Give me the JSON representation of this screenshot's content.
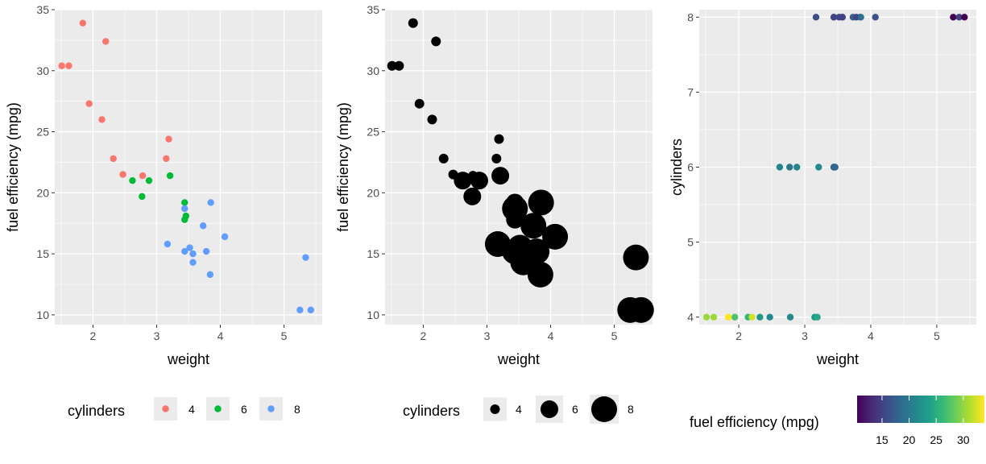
{
  "chart_data": [
    {
      "id": "panel_a",
      "type": "scatter",
      "title": "",
      "xlabel": "weight",
      "ylabel": "fuel efficiency (mpg)",
      "xlim": [
        1.4,
        5.6
      ],
      "ylim": [
        9.2,
        35.0
      ],
      "x_ticks": [
        2,
        3,
        4,
        5
      ],
      "y_ticks": [
        10,
        15,
        20,
        25,
        30,
        35
      ],
      "grid": true,
      "legend": {
        "title": "cylinders",
        "placement": "bottom",
        "entries": [
          {
            "label": "4",
            "color": "#F8766D"
          },
          {
            "label": "6",
            "color": "#00BA38"
          },
          {
            "label": "8",
            "color": "#619CFF"
          }
        ]
      },
      "series": [
        {
          "name": "4",
          "color": "#F8766D",
          "points": [
            [
              1.51,
              30.4
            ],
            [
              1.62,
              30.4
            ],
            [
              1.84,
              33.9
            ],
            [
              2.2,
              32.4
            ],
            [
              1.94,
              27.3
            ],
            [
              2.14,
              26.0
            ],
            [
              2.32,
              22.8
            ],
            [
              2.47,
              21.5
            ],
            [
              2.78,
              21.4
            ],
            [
              3.15,
              22.8
            ],
            [
              3.19,
              24.4
            ]
          ]
        },
        {
          "name": "6",
          "color": "#00BA38",
          "points": [
            [
              2.62,
              21.0
            ],
            [
              2.77,
              19.7
            ],
            [
              2.88,
              21.0
            ],
            [
              3.21,
              21.4
            ],
            [
              3.44,
              19.2
            ],
            [
              3.44,
              17.8
            ],
            [
              3.46,
              18.1
            ]
          ]
        },
        {
          "name": "8",
          "color": "#619CFF",
          "points": [
            [
              3.17,
              15.8
            ],
            [
              3.44,
              18.7
            ],
            [
              3.44,
              15.2
            ],
            [
              3.52,
              15.5
            ],
            [
              3.57,
              14.3
            ],
            [
              3.57,
              15.0
            ],
            [
              3.73,
              17.3
            ],
            [
              3.78,
              15.2
            ],
            [
              3.84,
              13.3
            ],
            [
              3.85,
              19.2
            ],
            [
              4.07,
              16.4
            ],
            [
              5.25,
              10.4
            ],
            [
              5.34,
              14.7
            ],
            [
              5.42,
              10.4
            ]
          ]
        }
      ]
    },
    {
      "id": "panel_b",
      "type": "scatter",
      "title": "",
      "xlabel": "weight",
      "ylabel": "fuel efficiency (mpg)",
      "xlim": [
        1.4,
        5.6
      ],
      "ylim": [
        9.2,
        35.0
      ],
      "x_ticks": [
        2,
        3,
        4,
        5
      ],
      "y_ticks": [
        10,
        15,
        20,
        25,
        30,
        35
      ],
      "grid": true,
      "point_color": "#000000",
      "size_by": "cylinders",
      "legend": {
        "title": "cylinders",
        "placement": "bottom",
        "entries": [
          {
            "label": "4",
            "cyl": 4
          },
          {
            "label": "6",
            "cyl": 6
          },
          {
            "label": "8",
            "cyl": 8
          }
        ]
      },
      "points": [
        {
          "x": 1.51,
          "y": 30.4,
          "cyl": 4
        },
        {
          "x": 1.62,
          "y": 30.4,
          "cyl": 4
        },
        {
          "x": 1.84,
          "y": 33.9,
          "cyl": 4
        },
        {
          "x": 2.2,
          "y": 32.4,
          "cyl": 4
        },
        {
          "x": 1.94,
          "y": 27.3,
          "cyl": 4
        },
        {
          "x": 2.14,
          "y": 26.0,
          "cyl": 4
        },
        {
          "x": 2.32,
          "y": 22.8,
          "cyl": 4
        },
        {
          "x": 2.47,
          "y": 21.5,
          "cyl": 4
        },
        {
          "x": 2.78,
          "y": 21.4,
          "cyl": 4
        },
        {
          "x": 3.15,
          "y": 22.8,
          "cyl": 4
        },
        {
          "x": 3.19,
          "y": 24.4,
          "cyl": 4
        },
        {
          "x": 2.62,
          "y": 21.0,
          "cyl": 6
        },
        {
          "x": 2.77,
          "y": 19.7,
          "cyl": 6
        },
        {
          "x": 2.88,
          "y": 21.0,
          "cyl": 6
        },
        {
          "x": 3.21,
          "y": 21.4,
          "cyl": 6
        },
        {
          "x": 3.44,
          "y": 19.2,
          "cyl": 6
        },
        {
          "x": 3.44,
          "y": 17.8,
          "cyl": 6
        },
        {
          "x": 3.46,
          "y": 18.1,
          "cyl": 6
        },
        {
          "x": 3.17,
          "y": 15.8,
          "cyl": 8
        },
        {
          "x": 3.44,
          "y": 18.7,
          "cyl": 8
        },
        {
          "x": 3.44,
          "y": 15.2,
          "cyl": 8
        },
        {
          "x": 3.52,
          "y": 15.5,
          "cyl": 8
        },
        {
          "x": 3.57,
          "y": 14.3,
          "cyl": 8
        },
        {
          "x": 3.57,
          "y": 15.0,
          "cyl": 8
        },
        {
          "x": 3.73,
          "y": 17.3,
          "cyl": 8
        },
        {
          "x": 3.78,
          "y": 15.2,
          "cyl": 8
        },
        {
          "x": 3.84,
          "y": 13.3,
          "cyl": 8
        },
        {
          "x": 3.85,
          "y": 19.2,
          "cyl": 8
        },
        {
          "x": 4.07,
          "y": 16.4,
          "cyl": 8
        },
        {
          "x": 5.25,
          "y": 10.4,
          "cyl": 8
        },
        {
          "x": 5.34,
          "y": 14.7,
          "cyl": 8
        },
        {
          "x": 5.42,
          "y": 10.4,
          "cyl": 8
        }
      ]
    },
    {
      "id": "panel_c",
      "type": "scatter",
      "title": "",
      "xlabel": "weight",
      "ylabel": "cylinders",
      "xlim": [
        1.4,
        5.6
      ],
      "ylim": [
        3.9,
        8.1
      ],
      "x_ticks": [
        2,
        3,
        4,
        5
      ],
      "y_ticks": [
        4,
        5,
        6,
        7,
        8
      ],
      "grid": true,
      "color_by": "fuel efficiency (mpg)",
      "color_scale": "viridis",
      "color_range": [
        10.4,
        33.9
      ],
      "colorbar": {
        "title": "fuel efficiency (mpg)",
        "placement": "bottom",
        "ticks": [
          15,
          20,
          25,
          30
        ]
      },
      "points": [
        {
          "x": 1.51,
          "y": 4,
          "mpg": 30.4
        },
        {
          "x": 1.62,
          "y": 4,
          "mpg": 30.4
        },
        {
          "x": 1.84,
          "y": 4,
          "mpg": 33.9
        },
        {
          "x": 1.94,
          "y": 4,
          "mpg": 27.3
        },
        {
          "x": 2.14,
          "y": 4,
          "mpg": 26.0
        },
        {
          "x": 2.2,
          "y": 4,
          "mpg": 32.4
        },
        {
          "x": 2.32,
          "y": 4,
          "mpg": 22.8
        },
        {
          "x": 2.47,
          "y": 4,
          "mpg": 21.5
        },
        {
          "x": 2.78,
          "y": 4,
          "mpg": 21.4
        },
        {
          "x": 3.15,
          "y": 4,
          "mpg": 22.8
        },
        {
          "x": 3.19,
          "y": 4,
          "mpg": 24.4
        },
        {
          "x": 2.62,
          "y": 6,
          "mpg": 21.0
        },
        {
          "x": 2.77,
          "y": 6,
          "mpg": 19.7
        },
        {
          "x": 2.88,
          "y": 6,
          "mpg": 21.0
        },
        {
          "x": 3.21,
          "y": 6,
          "mpg": 21.4
        },
        {
          "x": 3.44,
          "y": 6,
          "mpg": 19.2
        },
        {
          "x": 3.44,
          "y": 6,
          "mpg": 17.8
        },
        {
          "x": 3.46,
          "y": 6,
          "mpg": 18.1
        },
        {
          "x": 3.17,
          "y": 8,
          "mpg": 15.8
        },
        {
          "x": 3.44,
          "y": 8,
          "mpg": 18.7
        },
        {
          "x": 3.44,
          "y": 8,
          "mpg": 15.2
        },
        {
          "x": 3.52,
          "y": 8,
          "mpg": 15.5
        },
        {
          "x": 3.57,
          "y": 8,
          "mpg": 14.3
        },
        {
          "x": 3.57,
          "y": 8,
          "mpg": 15.0
        },
        {
          "x": 3.73,
          "y": 8,
          "mpg": 17.3
        },
        {
          "x": 3.78,
          "y": 8,
          "mpg": 15.2
        },
        {
          "x": 3.84,
          "y": 8,
          "mpg": 13.3
        },
        {
          "x": 3.85,
          "y": 8,
          "mpg": 19.2
        },
        {
          "x": 4.07,
          "y": 8,
          "mpg": 16.4
        },
        {
          "x": 5.25,
          "y": 8,
          "mpg": 10.4
        },
        {
          "x": 5.34,
          "y": 8,
          "mpg": 14.7
        },
        {
          "x": 5.42,
          "y": 8,
          "mpg": 10.4
        }
      ]
    }
  ]
}
